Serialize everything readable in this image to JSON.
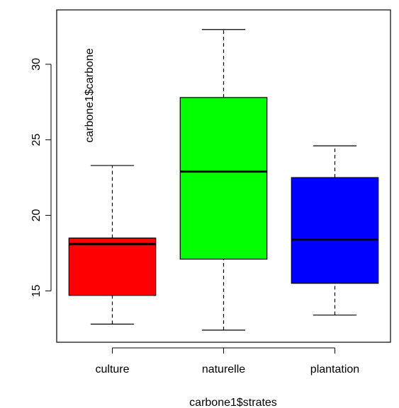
{
  "chart_data": {
    "type": "boxplot",
    "title": "",
    "xlabel": "carbone1$strates",
    "ylabel": "carbone1$carbone",
    "ylim": [
      11.6,
      33.6
    ],
    "yticks": [
      15,
      20,
      25,
      30
    ],
    "grid": false,
    "categories": [
      "culture",
      "naturelle",
      "plantation"
    ],
    "boxes": [
      {
        "category": "culture",
        "min": 12.8,
        "q1": 14.7,
        "median": 18.1,
        "q3": 18.5,
        "max": 23.3,
        "color": "#ff0000"
      },
      {
        "category": "naturelle",
        "min": 12.4,
        "q1": 17.1,
        "median": 22.9,
        "q3": 27.8,
        "max": 32.3,
        "color": "#00ff00"
      },
      {
        "category": "plantation",
        "min": 13.4,
        "q1": 15.5,
        "median": 18.4,
        "q3": 22.5,
        "max": 24.6,
        "color": "#0000ff"
      }
    ]
  }
}
